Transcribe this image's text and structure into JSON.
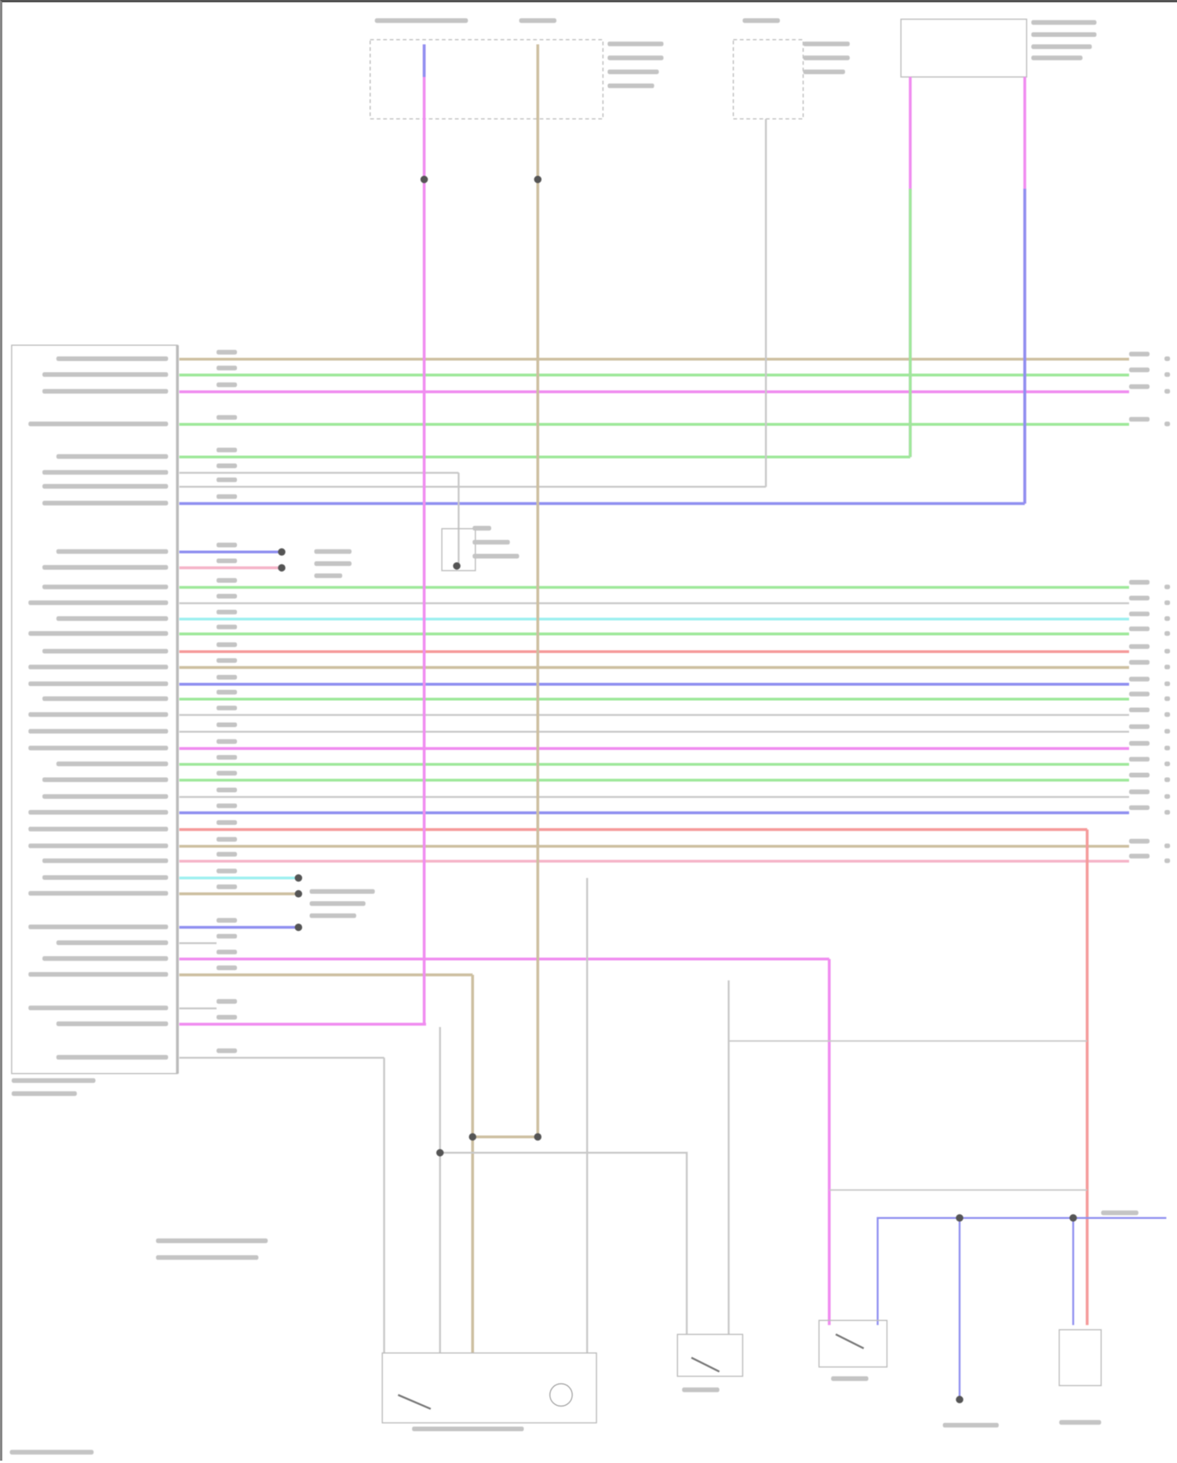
{
  "diagram": {
    "wire_colors": {
      "tan": "#cdbfa0",
      "green": "#9ee89a",
      "magenta": "#f08cf0",
      "blue": "#8f8ff0",
      "gray": "#c8c8c8",
      "cyan": "#9ef0f0",
      "red": "#f59a9a",
      "pink": "#f5b4c8"
    }
  }
}
